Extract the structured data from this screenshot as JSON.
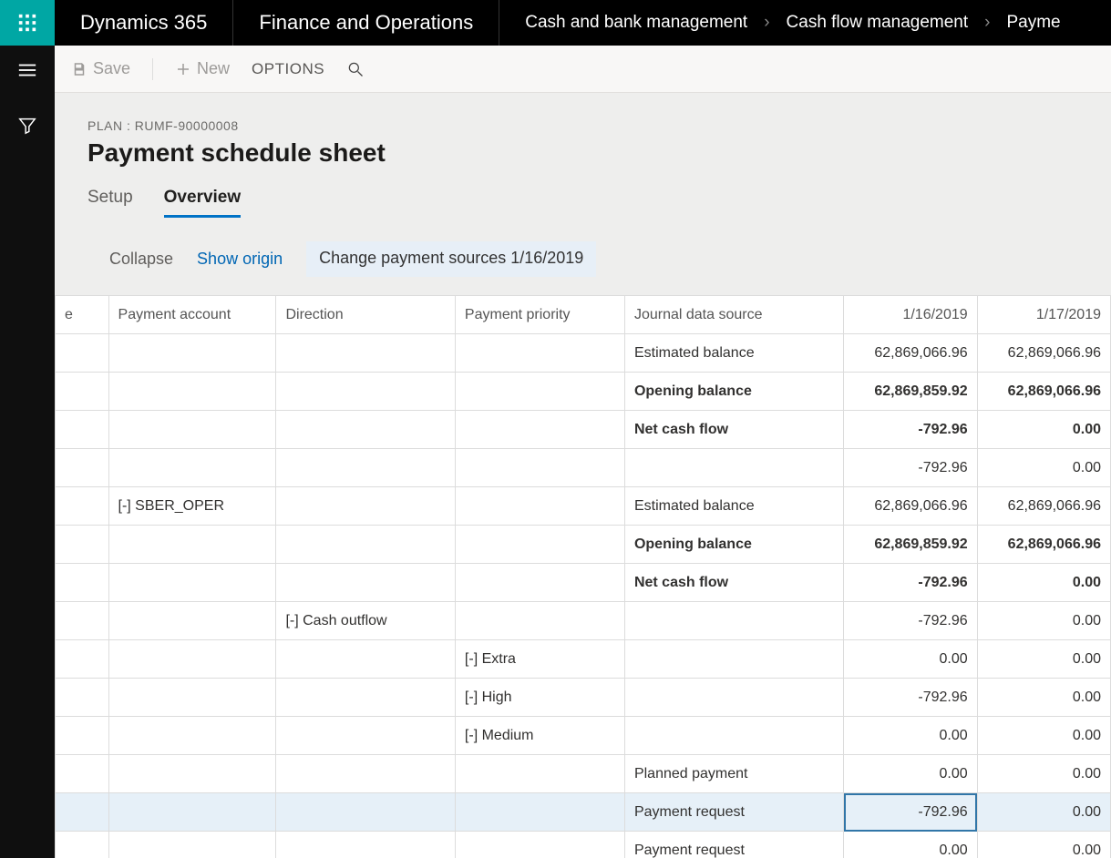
{
  "brand": "Dynamics 365",
  "module": "Finance and Operations",
  "crumbs": [
    "Cash and bank management",
    "Cash flow management",
    "Payme"
  ],
  "commands": {
    "save": "Save",
    "new": "New",
    "options": "OPTIONS"
  },
  "context": "PLAN : RUMF-90000008",
  "title": "Payment schedule sheet",
  "tabs": {
    "setup": "Setup",
    "overview": "Overview"
  },
  "links": {
    "collapse": "Collapse",
    "origin": "Show origin",
    "change": "Change payment sources 1/16/2019"
  },
  "columns": {
    "e": "e",
    "acct": "Payment account",
    "dir": "Direction",
    "pri": "Payment priority",
    "src": "Journal data source",
    "d1": "1/16/2019",
    "d2": "1/17/2019"
  },
  "rows": [
    {
      "acct": "",
      "dir": "",
      "pri": "",
      "src": "Estimated balance",
      "d1": "62,869,066.96",
      "d2": "62,869,066.96"
    },
    {
      "bold": true,
      "acct": "",
      "dir": "",
      "pri": "",
      "src": "Opening balance",
      "d1": "62,869,859.92",
      "d2": "62,869,066.96"
    },
    {
      "bold": true,
      "acct": "",
      "dir": "",
      "pri": "",
      "src": "Net cash flow",
      "d1": "-792.96",
      "d2": "0.00"
    },
    {
      "acct": "",
      "dir": "",
      "pri": "",
      "src": "",
      "d1": "-792.96",
      "d2": "0.00"
    },
    {
      "acct": "[-] SBER_OPER",
      "dir": "",
      "pri": "",
      "src": "Estimated balance",
      "d1": "62,869,066.96",
      "d2": "62,869,066.96"
    },
    {
      "bold": true,
      "acct": "",
      "dir": "",
      "pri": "",
      "src": "Opening balance",
      "d1": "62,869,859.92",
      "d2": "62,869,066.96"
    },
    {
      "bold": true,
      "acct": "",
      "dir": "",
      "pri": "",
      "src": "Net cash flow",
      "d1": "-792.96",
      "d2": "0.00"
    },
    {
      "acct": "",
      "dir": "[-] Cash outflow",
      "pri": "",
      "src": "",
      "d1": "-792.96",
      "d2": "0.00"
    },
    {
      "acct": "",
      "dir": "",
      "pri": "[-] Extra",
      "src": "",
      "d1": "0.00",
      "d2": "0.00"
    },
    {
      "acct": "",
      "dir": "",
      "pri": "[-] High",
      "src": "",
      "d1": "-792.96",
      "d2": "0.00"
    },
    {
      "acct": "",
      "dir": "",
      "pri": "[-] Medium",
      "src": "",
      "d1": "0.00",
      "d2": "0.00"
    },
    {
      "acct": "",
      "dir": "",
      "pri": "",
      "src": "Planned payment",
      "d1": "0.00",
      "d2": "0.00"
    },
    {
      "sel": true,
      "acct": "",
      "dir": "",
      "pri": "",
      "src": "Payment request",
      "d1": "-792.96",
      "d2": "0.00"
    },
    {
      "acct": "",
      "dir": "",
      "pri": "",
      "src": "Payment request",
      "d1": "0.00",
      "d2": "0.00"
    }
  ]
}
